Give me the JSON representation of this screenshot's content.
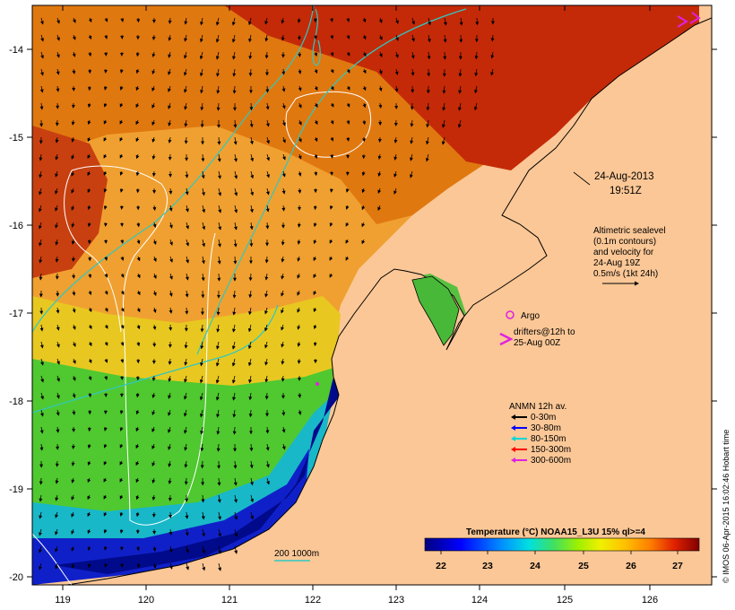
{
  "map": {
    "date": "24-Aug-2013",
    "time": "19:51Z",
    "x_ticks": [
      "119",
      "120",
      "121",
      "122",
      "123",
      "124",
      "125",
      "126"
    ],
    "y_ticks": [
      "-14",
      "-15",
      "-16",
      "-17",
      "-18",
      "-19",
      "-20"
    ],
    "land_color": "#fbc796"
  },
  "altimetry_note": {
    "lines": [
      "Altimetric sealevel",
      "(0.1m contours)",
      "and velocity for",
      "24-Aug 19Z",
      "0.5m/s (1kt 24h)"
    ]
  },
  "argo_legend": {
    "argo_label": "Argo",
    "drifters_lines": [
      "drifters@12h to",
      "25-Aug 00Z"
    ],
    "argo_color": "#e020e0",
    "drifter_color": "#e020e0"
  },
  "anmn_legend": {
    "title": "ANMN 12h av.",
    "items": [
      {
        "label": "0-30m",
        "color": "#000000"
      },
      {
        "label": "30-80m",
        "color": "#0000ff"
      },
      {
        "label": "80-150m",
        "color": "#00d8d8"
      },
      {
        "label": "150-300m",
        "color": "#ff0000"
      },
      {
        "label": "300-600m",
        "color": "#e020e0"
      }
    ]
  },
  "bathymetry_legend": {
    "label": "200  1000m"
  },
  "colorbar": {
    "title": "Temperature (°C) NOAA15_L3U 15% ql>=4",
    "ticks": [
      "22",
      "23",
      "24",
      "25",
      "26",
      "27"
    ]
  },
  "credit": "© IMOS 06-Apr-2015 16:02:46 Hobart time"
}
